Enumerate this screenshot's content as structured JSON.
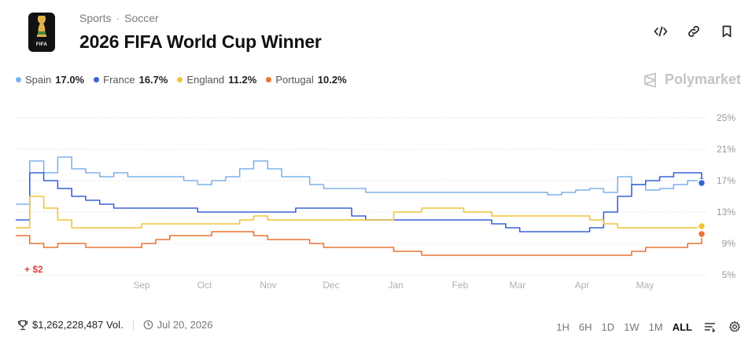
{
  "header": {
    "breadcrumb": [
      "Sports",
      "Soccer"
    ],
    "breadcrumb_separator": "·",
    "title": "2026 FIFA World Cup Winner",
    "logo_text": "FIFA",
    "actions": [
      "embed-icon",
      "link-icon",
      "bookmark-icon"
    ]
  },
  "legend": [
    {
      "name": "Spain",
      "value": "17.0%",
      "color": "#7eb3e8"
    },
    {
      "name": "France",
      "value": "16.7%",
      "color": "#3a62d6"
    },
    {
      "name": "England",
      "value": "11.2%",
      "color": "#f2c236"
    },
    {
      "name": "Portugal",
      "value": "10.2%",
      "color": "#ea7434"
    }
  ],
  "brand": "Polymarket",
  "chart_data": {
    "type": "line",
    "x_ticks": [
      "Sep",
      "Oct",
      "Nov",
      "Dec",
      "Jan",
      "Feb",
      "Mar",
      "Apr",
      "May"
    ],
    "y_ticks": [
      "25%",
      "21%",
      "17%",
      "13%",
      "9%",
      "5%"
    ],
    "ylim": [
      5,
      25
    ],
    "grid": "dotted horizontal",
    "annotation": "+ $2",
    "series": [
      {
        "name": "Spain",
        "color": "#7eb3e8",
        "values": [
          14,
          19.5,
          18,
          20,
          18.5,
          18,
          17.5,
          18,
          17.5,
          17.5,
          17.5,
          17.5,
          17,
          16.5,
          17,
          17.5,
          18.5,
          19.5,
          18.5,
          17.5,
          17.5,
          16.5,
          16,
          16,
          16,
          15.5,
          15.5,
          15.5,
          15.5,
          15.5,
          15.5,
          15.5,
          15.5,
          15.5,
          15.5,
          15.5,
          15.5,
          15.5,
          15.2,
          15.5,
          15.8,
          16,
          15.5,
          17.5,
          16.5,
          15.8,
          16,
          16.5,
          17,
          17
        ]
      },
      {
        "name": "France",
        "color": "#3a62d6",
        "values": [
          12,
          18,
          17,
          16,
          15,
          14.5,
          14,
          13.5,
          13.5,
          13.5,
          13.5,
          13.5,
          13.5,
          13,
          13,
          13,
          13,
          13,
          13,
          13,
          13.5,
          13.5,
          13.5,
          13.5,
          12.5,
          12,
          12,
          12,
          12,
          12,
          12,
          12,
          12,
          12,
          11.5,
          11,
          10.5,
          10.5,
          10.5,
          10.5,
          10.5,
          11,
          13,
          15,
          16.5,
          17,
          17.5,
          18,
          18,
          16.7
        ]
      },
      {
        "name": "England",
        "color": "#f2c236",
        "values": [
          11,
          15,
          13.5,
          12,
          11,
          11,
          11,
          11,
          11,
          11.5,
          11.5,
          11.5,
          11.5,
          11.5,
          11.5,
          11.5,
          12,
          12.5,
          12,
          12,
          12,
          12,
          12,
          12,
          12,
          12,
          12,
          13,
          13,
          13.5,
          13.5,
          13.5,
          13,
          13,
          12.5,
          12.5,
          12.5,
          12.5,
          12.5,
          12.5,
          12.5,
          12,
          11.5,
          11,
          11,
          11,
          11,
          11,
          11,
          11.2
        ]
      },
      {
        "name": "Portugal",
        "color": "#ea7434",
        "values": [
          10,
          9,
          8.5,
          9,
          9,
          8.5,
          8.5,
          8.5,
          8.5,
          9,
          9.5,
          10,
          10,
          10,
          10.5,
          10.5,
          10.5,
          10,
          9.5,
          9.5,
          9.5,
          9,
          8.5,
          8.5,
          8.5,
          8.5,
          8.5,
          8,
          8,
          7.5,
          7.5,
          7.5,
          7.5,
          7.5,
          7.5,
          7.5,
          7.5,
          7.5,
          7.5,
          7.5,
          7.5,
          7.5,
          7.5,
          7.5,
          8,
          8.5,
          8.5,
          8.5,
          9,
          10.2
        ]
      }
    ]
  },
  "footer": {
    "volume": "$1,262,228,487 Vol.",
    "date": "Jul 20, 2026"
  },
  "ranges": [
    "1H",
    "6H",
    "1D",
    "1W",
    "1M",
    "ALL"
  ],
  "active_range": "ALL"
}
